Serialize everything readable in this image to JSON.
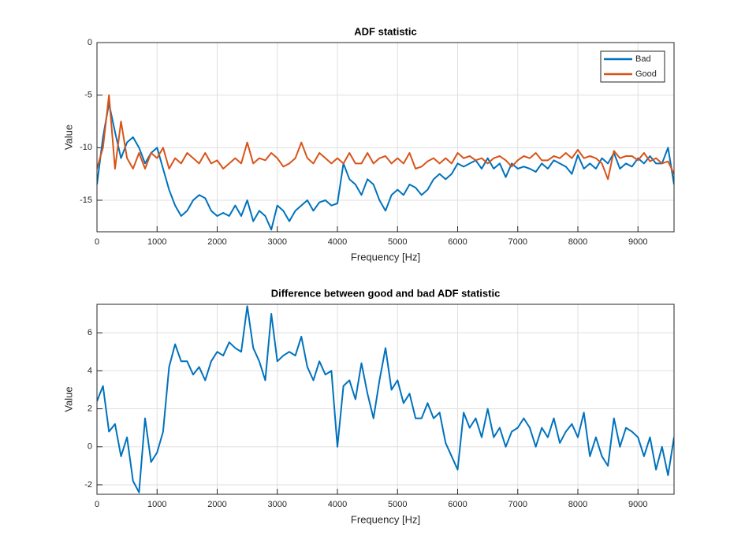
{
  "chart_data": [
    {
      "type": "line",
      "title": "ADF statistic",
      "xlabel": "Frequency [Hz]",
      "ylabel": "Value",
      "x": [
        0,
        100,
        200,
        300,
        400,
        500,
        600,
        700,
        800,
        900,
        1000,
        1100,
        1200,
        1300,
        1400,
        1500,
        1600,
        1700,
        1800,
        1900,
        2000,
        2100,
        2200,
        2300,
        2400,
        2500,
        2600,
        2700,
        2800,
        2900,
        3000,
        3100,
        3200,
        3300,
        3400,
        3500,
        3600,
        3700,
        3800,
        3900,
        4000,
        4100,
        4200,
        4300,
        4400,
        4500,
        4600,
        4700,
        4800,
        4900,
        5000,
        5100,
        5200,
        5300,
        5400,
        5500,
        5600,
        5700,
        5800,
        5900,
        6000,
        6100,
        6200,
        6300,
        6400,
        6500,
        6600,
        6700,
        6800,
        6900,
        7000,
        7100,
        7200,
        7300,
        7400,
        7500,
        7600,
        7700,
        7800,
        7900,
        8000,
        8100,
        8200,
        8300,
        8400,
        8500,
        8600,
        8700,
        8800,
        8900,
        9000,
        9100,
        9200,
        9300,
        9400,
        9500,
        9600
      ],
      "series": [
        {
          "name": "Bad",
          "color": "#0072bd",
          "values": [
            -13.5,
            -9,
            -5.8,
            -8.5,
            -11,
            -9.5,
            -9,
            -10,
            -11.5,
            -10.5,
            -10,
            -12,
            -14,
            -15.5,
            -16.5,
            -16,
            -15,
            -14.5,
            -14.8,
            -16,
            -16.5,
            -16.2,
            -16.5,
            -15.5,
            -16.5,
            -15,
            -17,
            -16,
            -16.5,
            -17.8,
            -15.5,
            -16,
            -17,
            -16,
            -15.5,
            -15,
            -16,
            -15.2,
            -15,
            -15.5,
            -15.3,
            -11.5,
            -13,
            -13.5,
            -14.5,
            -13,
            -13.5,
            -15,
            -16,
            -14.5,
            -14,
            -14.5,
            -13.5,
            -13.8,
            -14.5,
            -14,
            -13,
            -12.5,
            -13,
            -12.5,
            -11.5,
            -11.8,
            -11.5,
            -11.2,
            -12,
            -11,
            -12,
            -11.5,
            -12.8,
            -11.5,
            -12,
            -11.8,
            -12,
            -12.3,
            -11.5,
            -12,
            -11.2,
            -11.5,
            -11.8,
            -12.5,
            -10.7,
            -12,
            -11.5,
            -12,
            -11,
            -11.5,
            -10.5,
            -12,
            -11.5,
            -11.8,
            -11,
            -11.5,
            -10.8,
            -11.5,
            -11.5,
            -10,
            -13.5
          ]
        },
        {
          "name": "Good",
          "color": "#d95319",
          "values": [
            -12,
            -10,
            -5,
            -12,
            -7.5,
            -11,
            -12,
            -10.5,
            -12,
            -10.5,
            -11,
            -10,
            -12,
            -11,
            -11.5,
            -10.5,
            -11,
            -11.5,
            -10.5,
            -11.5,
            -11.2,
            -12,
            -11.5,
            -11,
            -11.5,
            -9.5,
            -11.5,
            -11,
            -11.2,
            -10.5,
            -11,
            -11.8,
            -11.5,
            -11,
            -9.5,
            -11,
            -11.5,
            -10.5,
            -11,
            -11.5,
            -11,
            -11.5,
            -10.5,
            -11.5,
            -11.5,
            -10.5,
            -11.5,
            -11,
            -10.8,
            -11.5,
            -11,
            -11.5,
            -10.5,
            -12,
            -11.8,
            -11.3,
            -11,
            -11.5,
            -11,
            -11.5,
            -10.5,
            -11,
            -10.8,
            -11.2,
            -11,
            -11.5,
            -11,
            -10.8,
            -11.2,
            -11.8,
            -11.2,
            -10.8,
            -11,
            -10.5,
            -11.2,
            -11.2,
            -10.8,
            -11,
            -10.5,
            -11,
            -10.2,
            -11,
            -10.8,
            -11,
            -11.5,
            -13,
            -10.3,
            -11,
            -10.8,
            -10.8,
            -11.2,
            -10.5,
            -11.3,
            -11,
            -11.5,
            -11.3,
            -12.5
          ]
        }
      ],
      "xlim": [
        0,
        9600
      ],
      "xticks": [
        0,
        1000,
        2000,
        3000,
        4000,
        5000,
        6000,
        7000,
        8000,
        9000
      ],
      "ylim": [
        -18,
        0
      ],
      "yticks": [
        -15,
        -10,
        -5,
        0
      ],
      "grid": true,
      "legend": "northeast"
    },
    {
      "type": "line",
      "title": "Difference between good and bad ADF statistic",
      "xlabel": "Frequency [Hz]",
      "ylabel": "Value",
      "x": [
        0,
        100,
        200,
        300,
        400,
        500,
        600,
        700,
        800,
        900,
        1000,
        1100,
        1200,
        1300,
        1400,
        1500,
        1600,
        1700,
        1800,
        1900,
        2000,
        2100,
        2200,
        2300,
        2400,
        2500,
        2600,
        2700,
        2800,
        2900,
        3000,
        3100,
        3200,
        3300,
        3400,
        3500,
        3600,
        3700,
        3800,
        3900,
        4000,
        4100,
        4200,
        4300,
        4400,
        4500,
        4600,
        4700,
        4800,
        4900,
        5000,
        5100,
        5200,
        5300,
        5400,
        5500,
        5600,
        5700,
        5800,
        5900,
        6000,
        6100,
        6200,
        6300,
        6400,
        6500,
        6600,
        6700,
        6800,
        6900,
        7000,
        7100,
        7200,
        7300,
        7400,
        7500,
        7600,
        7700,
        7800,
        7900,
        8000,
        8100,
        8200,
        8300,
        8400,
        8500,
        8600,
        8700,
        8800,
        8900,
        9000,
        9100,
        9200,
        9300,
        9400,
        9500,
        9600
      ],
      "series": [
        {
          "color": "#0072bd",
          "values": [
            2.4,
            3.2,
            0.8,
            1.2,
            -0.5,
            0.5,
            -1.8,
            -2.4,
            1.5,
            -0.8,
            -0.3,
            0.8,
            4.2,
            5.4,
            4.5,
            4.5,
            3.8,
            4.2,
            3.5,
            4.5,
            5.0,
            4.8,
            5.5,
            5.2,
            5.0,
            7.4,
            5.2,
            4.5,
            3.5,
            7.0,
            4.5,
            4.8,
            5.0,
            4.8,
            5.8,
            4.2,
            3.5,
            4.5,
            3.8,
            4.0,
            0.0,
            3.2,
            3.5,
            2.5,
            4.4,
            2.8,
            1.5,
            3.5,
            5.2,
            3.0,
            3.5,
            2.3,
            2.8,
            1.5,
            1.5,
            2.3,
            1.5,
            1.8,
            0.2,
            -0.5,
            -1.2,
            1.8,
            1.0,
            1.5,
            0.5,
            2.0,
            0.5,
            1.0,
            0.0,
            0.8,
            1.0,
            1.5,
            1.0,
            0.0,
            1.0,
            0.5,
            1.5,
            0.2,
            0.8,
            1.2,
            0.5,
            1.8,
            -0.5,
            0.5,
            -0.5,
            -1.0,
            1.5,
            0.0,
            1.0,
            0.8,
            0.5,
            -0.5,
            0.5,
            -1.2,
            0.0,
            -1.5,
            0.5
          ]
        }
      ],
      "xlim": [
        0,
        9600
      ],
      "xticks": [
        0,
        1000,
        2000,
        3000,
        4000,
        5000,
        6000,
        7000,
        8000,
        9000
      ],
      "ylim": [
        -2.5,
        7.5
      ],
      "yticks": [
        -2,
        0,
        2,
        4,
        6
      ],
      "grid": true
    }
  ]
}
